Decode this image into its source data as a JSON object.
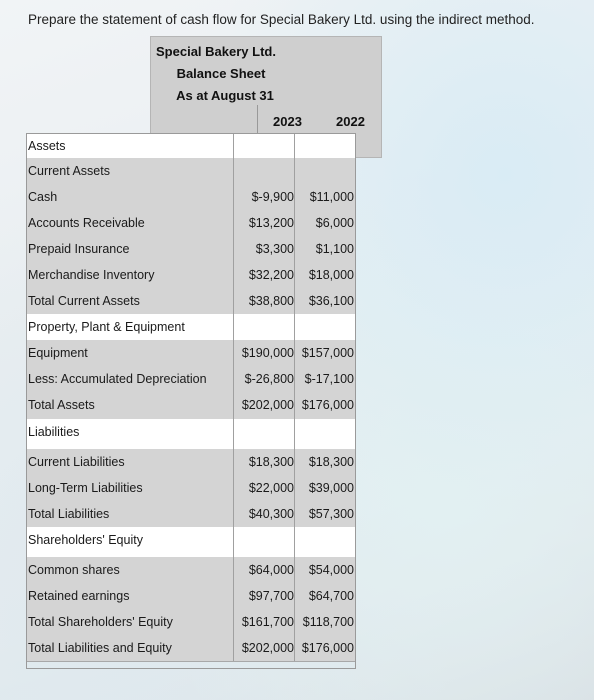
{
  "prompt": "Prepare the statement of cash flow for Special Bakery Ltd. using the indirect method.",
  "header": {
    "company": "Special Bakery Ltd.",
    "statement": "Balance Sheet",
    "date": "As at August 31",
    "year1": "2023",
    "year2": "2022"
  },
  "rows": [
    {
      "label": "Assets",
      "v1": "",
      "v2": ""
    },
    {
      "label": "Current Assets",
      "v1": "",
      "v2": ""
    },
    {
      "label": "Cash",
      "v1": "$-9,900",
      "v2": "$11,000"
    },
    {
      "label": "Accounts Receivable",
      "v1": "$13,200",
      "v2": "$6,000"
    },
    {
      "label": "Prepaid Insurance",
      "v1": "$3,300",
      "v2": "$1,100"
    },
    {
      "label": "Merchandise Inventory",
      "v1": "$32,200",
      "v2": "$18,000"
    },
    {
      "label": "Total Current Assets",
      "v1": "$38,800",
      "v2": "$36,100"
    },
    {
      "label": "Property, Plant & Equipment",
      "v1": "",
      "v2": ""
    },
    {
      "label": "Equipment",
      "v1": "$190,000",
      "v2": "$157,000"
    },
    {
      "label": "Less: Accumulated Depreciation",
      "v1": "$-26,800",
      "v2": "$-17,100"
    },
    {
      "label": "Total Assets",
      "v1": "$202,000",
      "v2": "$176,000"
    },
    {
      "label": "Liabilities",
      "v1": "",
      "v2": ""
    },
    {
      "label": "Current Liabilities",
      "v1": "$18,300",
      "v2": "$18,300"
    },
    {
      "label": "Long-Term Liabilities",
      "v1": "$22,000",
      "v2": "$39,000"
    },
    {
      "label": "Total Liabilities",
      "v1": "$40,300",
      "v2": "$57,300"
    },
    {
      "label": "Shareholders' Equity",
      "v1": "",
      "v2": ""
    },
    {
      "label": "Common shares",
      "v1": "$64,000",
      "v2": "$54,000"
    },
    {
      "label": "Retained earnings",
      "v1": "$97,700",
      "v2": "$64,700"
    },
    {
      "label": "Total Shareholders' Equity",
      "v1": "$161,700",
      "v2": "$118,700"
    },
    {
      "label": "Total Liabilities and Equity",
      "v1": "$202,000",
      "v2": "$176,000"
    }
  ]
}
